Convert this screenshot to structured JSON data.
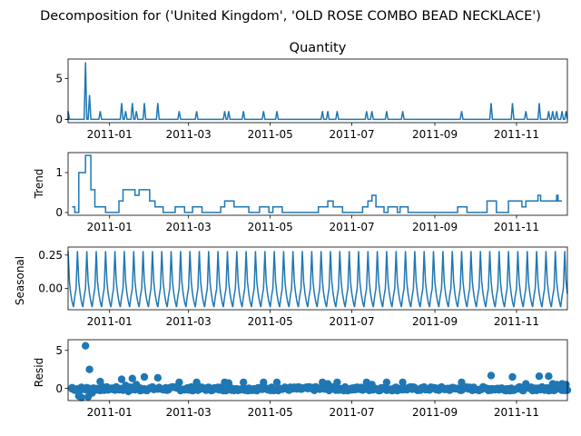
{
  "figure": {
    "suptitle": "Decomposition for ('United Kingdom', 'OLD ROSE COMBO BEAD NECKLACE')"
  },
  "colors": {
    "line": "#1f77b4",
    "axis": "#000000",
    "background": "#ffffff"
  },
  "chart_data": [
    {
      "type": "line",
      "title": "Quantity",
      "ylabel": "",
      "xlim": [
        "2010-12-01",
        "2011-12-09"
      ],
      "ylim": [
        -0.4,
        7.4
      ],
      "yticks": [
        0,
        5
      ],
      "xticks": [
        "2011-01",
        "2011-03",
        "2011-05",
        "2011-07",
        "2011-09",
        "2011-11"
      ],
      "baseline": 0,
      "spikes": [
        {
          "x": "2010-12-01",
          "y": 1
        },
        {
          "x": "2010-12-14",
          "y": 7
        },
        {
          "x": "2010-12-17",
          "y": 3
        },
        {
          "x": "2010-12-25",
          "y": 1
        },
        {
          "x": "2011-01-10",
          "y": 2
        },
        {
          "x": "2011-01-13",
          "y": 1
        },
        {
          "x": "2011-01-18",
          "y": 2
        },
        {
          "x": "2011-01-21",
          "y": 1
        },
        {
          "x": "2011-01-27",
          "y": 2
        },
        {
          "x": "2011-02-06",
          "y": 2
        },
        {
          "x": "2011-02-22",
          "y": 1
        },
        {
          "x": "2011-03-07",
          "y": 1
        },
        {
          "x": "2011-03-28",
          "y": 1
        },
        {
          "x": "2011-03-31",
          "y": 1
        },
        {
          "x": "2011-04-11",
          "y": 1
        },
        {
          "x": "2011-04-26",
          "y": 1
        },
        {
          "x": "2011-05-06",
          "y": 1
        },
        {
          "x": "2011-06-09",
          "y": 1
        },
        {
          "x": "2011-06-13",
          "y": 1
        },
        {
          "x": "2011-06-20",
          "y": 1
        },
        {
          "x": "2011-07-12",
          "y": 1
        },
        {
          "x": "2011-07-16",
          "y": 1
        },
        {
          "x": "2011-07-27",
          "y": 1
        },
        {
          "x": "2011-08-08",
          "y": 1
        },
        {
          "x": "2011-09-21",
          "y": 1
        },
        {
          "x": "2011-10-13",
          "y": 2
        },
        {
          "x": "2011-10-29",
          "y": 2
        },
        {
          "x": "2011-11-08",
          "y": 1
        },
        {
          "x": "2011-11-18",
          "y": 2
        },
        {
          "x": "2011-11-25",
          "y": 1
        },
        {
          "x": "2011-11-28",
          "y": 1
        },
        {
          "x": "2011-12-01",
          "y": 1
        },
        {
          "x": "2011-12-05",
          "y": 1
        },
        {
          "x": "2011-12-08",
          "y": 1
        }
      ]
    },
    {
      "type": "line",
      "title": "",
      "ylabel": "Trend",
      "xlim": [
        "2010-12-01",
        "2011-12-09"
      ],
      "ylim": [
        -0.07,
        1.5
      ],
      "yticks": [
        0,
        1
      ],
      "xticks": [
        "2011-01",
        "2011-03",
        "2011-05",
        "2011-07",
        "2011-09",
        "2011-11"
      ],
      "steps": [
        {
          "x": "2010-12-04",
          "y": 0.14
        },
        {
          "x": "2010-12-06",
          "y": 0.0
        },
        {
          "x": "2010-12-09",
          "y": 1.0
        },
        {
          "x": "2010-12-14",
          "y": 1.43
        },
        {
          "x": "2010-12-18",
          "y": 0.57
        },
        {
          "x": "2010-12-21",
          "y": 0.14
        },
        {
          "x": "2010-12-29",
          "y": 0.0
        },
        {
          "x": "2011-01-08",
          "y": 0.29
        },
        {
          "x": "2011-01-11",
          "y": 0.57
        },
        {
          "x": "2011-01-20",
          "y": 0.43
        },
        {
          "x": "2011-01-23",
          "y": 0.57
        },
        {
          "x": "2011-01-31",
          "y": 0.29
        },
        {
          "x": "2011-02-04",
          "y": 0.14
        },
        {
          "x": "2011-02-10",
          "y": 0.0
        },
        {
          "x": "2011-02-19",
          "y": 0.14
        },
        {
          "x": "2011-02-26",
          "y": 0.0
        },
        {
          "x": "2011-03-04",
          "y": 0.14
        },
        {
          "x": "2011-03-11",
          "y": 0.0
        },
        {
          "x": "2011-03-25",
          "y": 0.14
        },
        {
          "x": "2011-03-28",
          "y": 0.29
        },
        {
          "x": "2011-04-04",
          "y": 0.14
        },
        {
          "x": "2011-04-15",
          "y": 0.0
        },
        {
          "x": "2011-04-23",
          "y": 0.14
        },
        {
          "x": "2011-04-30",
          "y": 0.0
        },
        {
          "x": "2011-05-03",
          "y": 0.14
        },
        {
          "x": "2011-05-10",
          "y": 0.0
        },
        {
          "x": "2011-06-06",
          "y": 0.14
        },
        {
          "x": "2011-06-13",
          "y": 0.29
        },
        {
          "x": "2011-06-17",
          "y": 0.14
        },
        {
          "x": "2011-06-24",
          "y": 0.0
        },
        {
          "x": "2011-07-09",
          "y": 0.14
        },
        {
          "x": "2011-07-13",
          "y": 0.29
        },
        {
          "x": "2011-07-16",
          "y": 0.43
        },
        {
          "x": "2011-07-19",
          "y": 0.14
        },
        {
          "x": "2011-07-25",
          "y": 0.0
        },
        {
          "x": "2011-07-28",
          "y": 0.14
        },
        {
          "x": "2011-08-04",
          "y": 0.0
        },
        {
          "x": "2011-08-06",
          "y": 0.14
        },
        {
          "x": "2011-08-12",
          "y": 0.0
        },
        {
          "x": "2011-09-18",
          "y": 0.14
        },
        {
          "x": "2011-09-25",
          "y": 0.0
        },
        {
          "x": "2011-10-10",
          "y": 0.29
        },
        {
          "x": "2011-10-17",
          "y": 0.0
        },
        {
          "x": "2011-10-26",
          "y": 0.29
        },
        {
          "x": "2011-11-05",
          "y": 0.14
        },
        {
          "x": "2011-11-08",
          "y": 0.29
        },
        {
          "x": "2011-11-15",
          "y": 0.29
        },
        {
          "x": "2011-11-17",
          "y": 0.43
        },
        {
          "x": "2011-11-19",
          "y": 0.29
        },
        {
          "x": "2011-11-22",
          "y": 0.29
        },
        {
          "x": "2011-11-29",
          "y": 0.29
        },
        {
          "x": "2011-12-01",
          "y": 0.43
        },
        {
          "x": "2011-12-02",
          "y": 0.29
        }
      ],
      "end": "2011-12-05"
    },
    {
      "type": "line",
      "title": "",
      "ylabel": "Seasonal",
      "xlim": [
        "2010-12-01",
        "2011-12-09"
      ],
      "ylim": [
        -0.16,
        0.31
      ],
      "yticks": [
        0.25,
        0.0
      ],
      "ytick_labels": [
        "0.25",
        "0.00"
      ],
      "xticks": [
        "2011-01",
        "2011-03",
        "2011-05",
        "2011-07",
        "2011-09",
        "2011-11"
      ],
      "period_days": 7,
      "weekly_pattern": [
        0.28,
        0.05,
        -0.04,
        -0.1,
        -0.14,
        -0.06,
        0.0
      ]
    },
    {
      "type": "scatter",
      "title": "",
      "ylabel": "Resid",
      "xlim": [
        "2010-12-01",
        "2011-12-09"
      ],
      "ylim": [
        -1.6,
        6.4
      ],
      "yticks": [
        0,
        5
      ],
      "xticks": [
        "2011-01",
        "2011-03",
        "2011-05",
        "2011-07",
        "2011-09",
        "2011-11"
      ],
      "points": [
        {
          "x": "2010-12-04",
          "y": 0.1
        },
        {
          "x": "2010-12-07",
          "y": -0.2
        },
        {
          "x": "2010-12-09",
          "y": -1.0
        },
        {
          "x": "2010-12-11",
          "y": -1.2
        },
        {
          "x": "2010-12-14",
          "y": 5.6
        },
        {
          "x": "2010-12-16",
          "y": -1.1
        },
        {
          "x": "2010-12-17",
          "y": 2.5
        },
        {
          "x": "2010-12-19",
          "y": -0.6
        },
        {
          "x": "2010-12-22",
          "y": -0.2
        },
        {
          "x": "2010-12-25",
          "y": 0.9
        },
        {
          "x": "2010-12-28",
          "y": 0.1
        },
        {
          "x": "2011-01-02",
          "y": -0.1
        },
        {
          "x": "2011-01-06",
          "y": 0.1
        },
        {
          "x": "2011-01-10",
          "y": 1.2
        },
        {
          "x": "2011-01-13",
          "y": 0.4
        },
        {
          "x": "2011-01-15",
          "y": -0.4
        },
        {
          "x": "2011-01-18",
          "y": 1.3
        },
        {
          "x": "2011-01-21",
          "y": 0.5
        },
        {
          "x": "2011-01-24",
          "y": -0.3
        },
        {
          "x": "2011-01-27",
          "y": 1.5
        },
        {
          "x": "2011-02-01",
          "y": 0.1
        },
        {
          "x": "2011-02-06",
          "y": 1.4
        },
        {
          "x": "2011-02-12",
          "y": -0.1
        },
        {
          "x": "2011-02-17",
          "y": 0.2
        },
        {
          "x": "2011-02-22",
          "y": 0.8
        },
        {
          "x": "2011-03-01",
          "y": -0.2
        },
        {
          "x": "2011-03-07",
          "y": 0.8
        },
        {
          "x": "2011-03-15",
          "y": 0.0
        },
        {
          "x": "2011-03-22",
          "y": -0.1
        },
        {
          "x": "2011-03-28",
          "y": 0.8
        },
        {
          "x": "2011-03-31",
          "y": 0.7
        },
        {
          "x": "2011-04-11",
          "y": 0.8
        },
        {
          "x": "2011-04-26",
          "y": 0.8
        },
        {
          "x": "2011-05-06",
          "y": 0.8
        },
        {
          "x": "2011-06-09",
          "y": 0.8
        },
        {
          "x": "2011-06-13",
          "y": 0.6
        },
        {
          "x": "2011-06-20",
          "y": 0.8
        },
        {
          "x": "2011-07-12",
          "y": 0.8
        },
        {
          "x": "2011-07-16",
          "y": 0.5
        },
        {
          "x": "2011-07-27",
          "y": 0.8
        },
        {
          "x": "2011-08-08",
          "y": 0.8
        },
        {
          "x": "2011-09-21",
          "y": 0.8
        },
        {
          "x": "2011-10-13",
          "y": 1.7
        },
        {
          "x": "2011-10-29",
          "y": 1.5
        },
        {
          "x": "2011-11-08",
          "y": 0.6
        },
        {
          "x": "2011-11-18",
          "y": 1.6
        },
        {
          "x": "2011-11-25",
          "y": 1.6
        },
        {
          "x": "2011-11-28",
          "y": 0.6
        },
        {
          "x": "2011-12-01",
          "y": 0.5
        },
        {
          "x": "2011-12-05",
          "y": 0.6
        },
        {
          "x": "2011-12-08",
          "y": 0.5
        }
      ],
      "background_band": {
        "start": "2010-12-04",
        "end": "2011-12-09",
        "center": -0.05,
        "spread": 0.25
      }
    }
  ]
}
